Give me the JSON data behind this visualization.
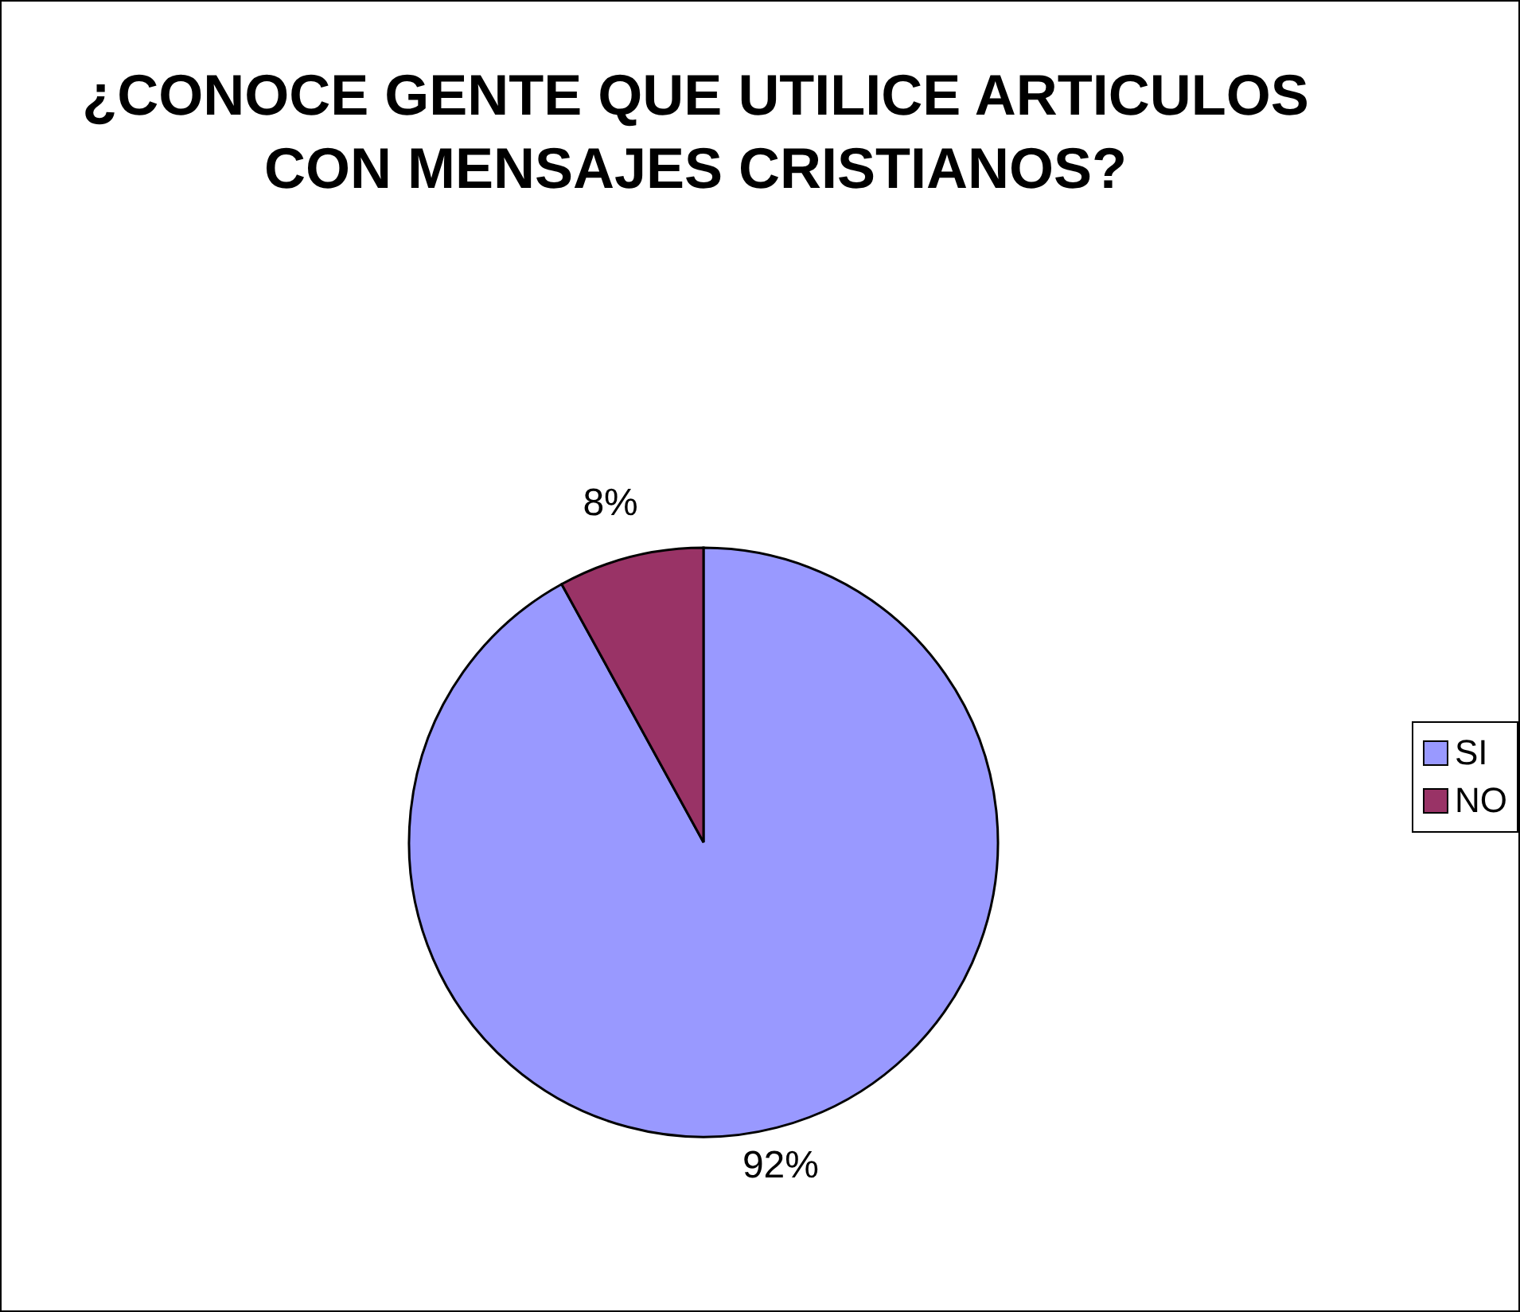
{
  "chart_data": {
    "type": "pie",
    "title": "¿CONOCE GENTE QUE UTILICE ARTICULOS CON MENSAJES CRISTIANOS?",
    "categories": [
      "SI",
      "NO"
    ],
    "values": [
      92,
      8
    ],
    "colors": [
      "#9999ff",
      "#993366"
    ],
    "value_labels": [
      "92%",
      "8%"
    ],
    "legend": "right"
  }
}
